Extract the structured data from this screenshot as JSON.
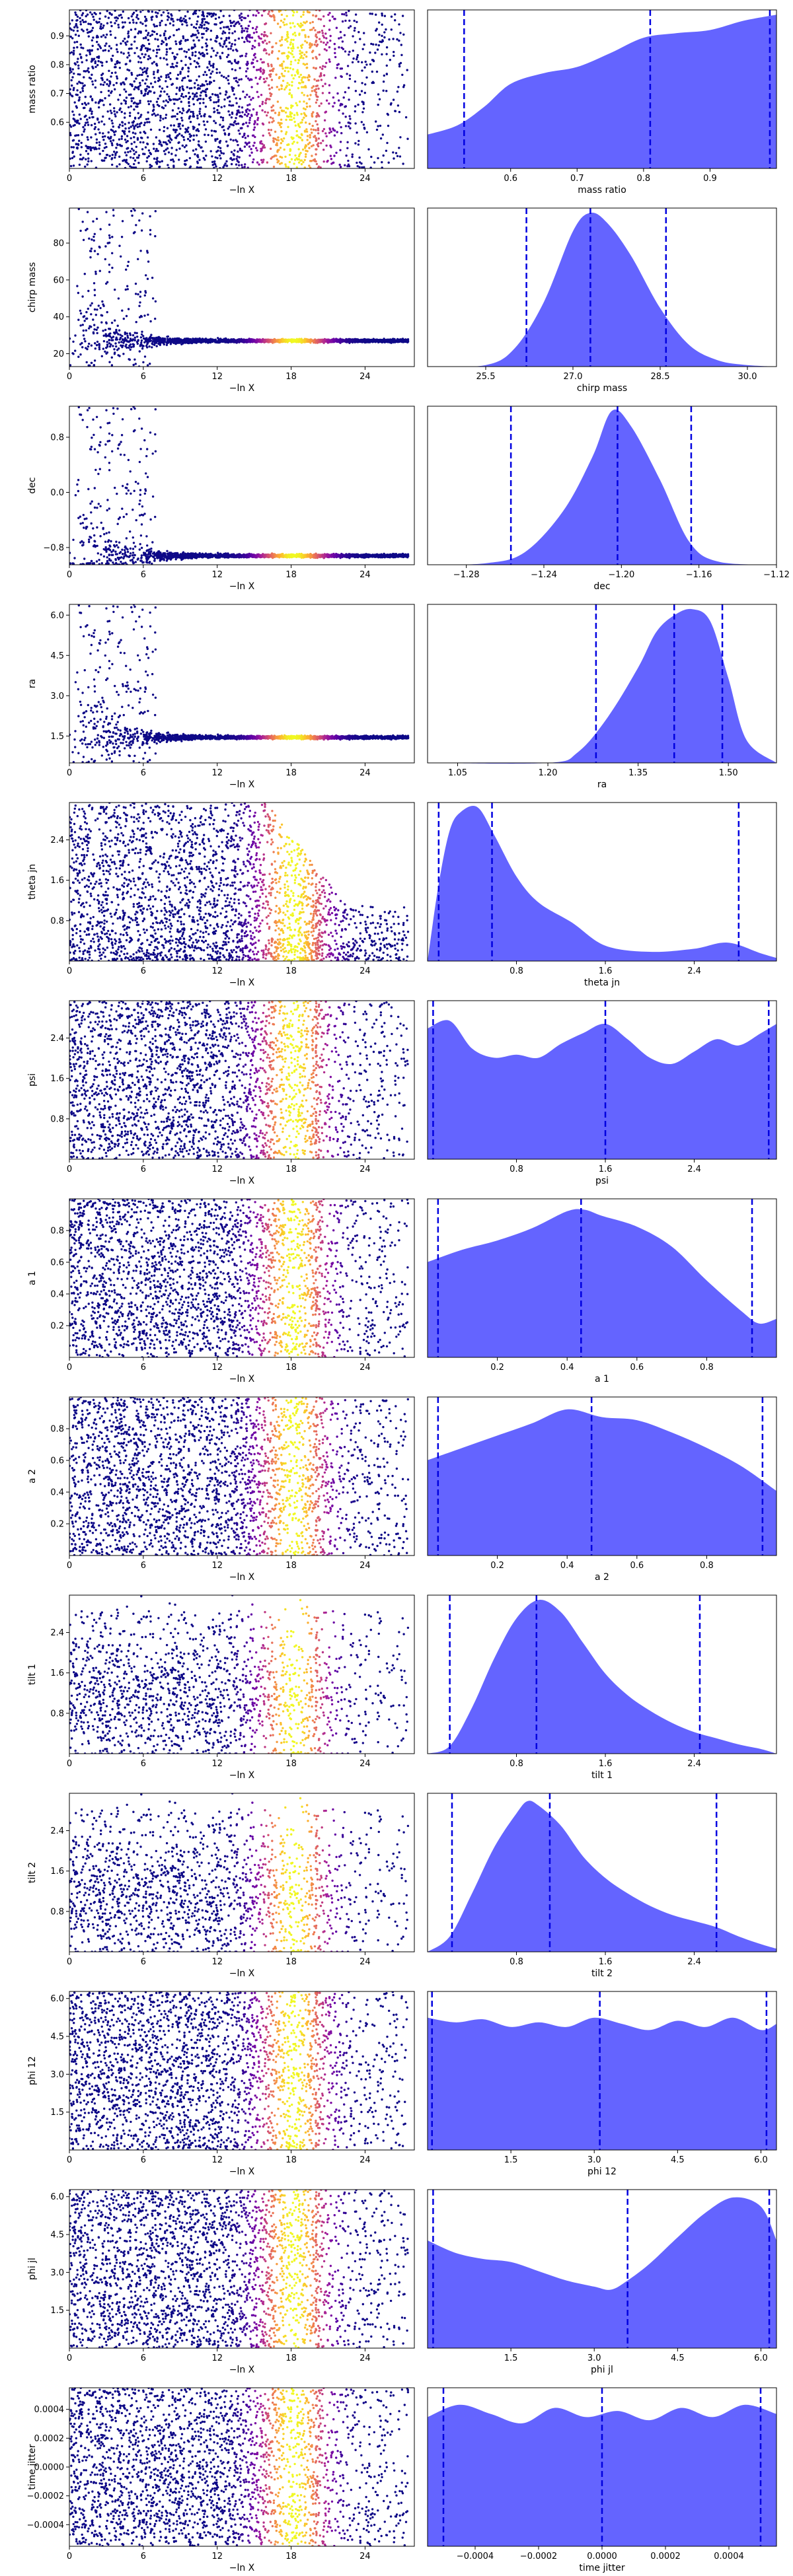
{
  "figure": {
    "xlabel_left": "−ln X",
    "fill_color": "#6464ff",
    "line_color": "#0000e0",
    "colormap": [
      "#0d0887",
      "#5c01a6",
      "#9c179e",
      "#cc4778",
      "#ed7953",
      "#fdb42f",
      "#f0f921"
    ]
  },
  "chart_data": [
    {
      "type": "scatter+density",
      "param": "mass ratio",
      "ylim": [
        0.44,
        0.99
      ],
      "yticks": [
        "0.6",
        "0.7",
        "0.8",
        "0.9"
      ],
      "xlim": [
        0.475,
        1.0
      ],
      "xticks": [
        "0.6",
        "0.7",
        "0.8",
        "0.9"
      ],
      "density_x": [
        0.475,
        0.52,
        0.56,
        0.6,
        0.65,
        0.7,
        0.75,
        0.8,
        0.85,
        0.9,
        0.95,
        1.0
      ],
      "density_y": [
        0.22,
        0.28,
        0.4,
        0.55,
        0.62,
        0.66,
        0.75,
        0.85,
        0.88,
        0.9,
        0.96,
        1.0
      ],
      "quantiles": [
        0.53,
        0.81,
        0.99
      ],
      "scatter": {
        "mode": "band",
        "pattern": "uniform"
      }
    },
    {
      "type": "scatter+density",
      "param": "chirp mass",
      "ylim": [
        13,
        99
      ],
      "yticks": [
        "20",
        "40",
        "60",
        "80"
      ],
      "xlim": [
        24.5,
        30.5
      ],
      "xticks": [
        "25.5",
        "27.0",
        "28.5",
        "30.0"
      ],
      "density_x": [
        24.5,
        25.5,
        26.0,
        26.5,
        27.0,
        27.3,
        27.6,
        28.0,
        28.5,
        29.0,
        29.5,
        30.0,
        30.5
      ],
      "density_y": [
        0.0,
        0.01,
        0.12,
        0.42,
        0.88,
        1.0,
        0.93,
        0.72,
        0.38,
        0.14,
        0.04,
        0.01,
        0.0
      ],
      "quantiles": [
        26.2,
        27.3,
        28.6
      ],
      "scatter": {
        "mode": "funnel",
        "center": 27,
        "spread": 60,
        "floor": 13
      }
    },
    {
      "type": "scatter+density",
      "param": "dec",
      "ylim": [
        -1.05,
        1.25
      ],
      "yticks": [
        "−0.8",
        "0.0",
        "0.8"
      ],
      "xlim": [
        -1.3,
        -1.12
      ],
      "xticks": [
        "−1.28",
        "−1.24",
        "−1.20",
        "−1.16",
        "−1.12"
      ],
      "density_x": [
        -1.3,
        -1.27,
        -1.25,
        -1.23,
        -1.215,
        -1.205,
        -1.195,
        -1.18,
        -1.165,
        -1.15,
        -1.12
      ],
      "density_y": [
        0.0,
        0.01,
        0.08,
        0.35,
        0.7,
        1.0,
        0.9,
        0.55,
        0.15,
        0.02,
        0.0
      ],
      "quantiles": [
        -1.257,
        -1.202,
        -1.164
      ],
      "scatter": {
        "mode": "funnel",
        "center": -0.92,
        "spread": 2.1,
        "floor": -1.05
      }
    },
    {
      "type": "scatter+density",
      "param": "ra",
      "ylim": [
        0.5,
        6.4
      ],
      "yticks": [
        "1.5",
        "3.0",
        "4.5",
        "6.0"
      ],
      "xlim": [
        1.0,
        1.58
      ],
      "xticks": [
        "1.05",
        "1.20",
        "1.35",
        "1.50"
      ],
      "density_x": [
        1.0,
        1.2,
        1.25,
        1.3,
        1.35,
        1.38,
        1.41,
        1.44,
        1.47,
        1.5,
        1.53,
        1.58
      ],
      "density_y": [
        0.0,
        0.0,
        0.07,
        0.3,
        0.62,
        0.85,
        0.96,
        1.0,
        0.92,
        0.55,
        0.15,
        0.0
      ],
      "quantiles": [
        1.28,
        1.41,
        1.49
      ],
      "scatter": {
        "mode": "funnel",
        "center": 1.45,
        "spread": 4.9,
        "floor": 0.5
      }
    },
    {
      "type": "scatter+density",
      "param": "theta jn",
      "ylim": [
        0.0,
        3.14
      ],
      "yticks": [
        "0.8",
        "1.6",
        "2.4"
      ],
      "xlim": [
        0.0,
        3.14
      ],
      "xticks": [
        "0.8",
        "1.6",
        "2.4"
      ],
      "density_x": [
        0.0,
        0.1,
        0.2,
        0.3,
        0.45,
        0.6,
        0.8,
        1.0,
        1.3,
        1.6,
        2.0,
        2.4,
        2.7,
        3.0,
        3.14
      ],
      "density_y": [
        0.0,
        0.5,
        0.85,
        0.97,
        1.0,
        0.82,
        0.55,
        0.38,
        0.25,
        0.1,
        0.06,
        0.08,
        0.12,
        0.05,
        0.02
      ],
      "quantiles": [
        0.1,
        0.58,
        2.8
      ],
      "scatter": {
        "mode": "band",
        "pattern": "falloff"
      }
    },
    {
      "type": "scatter+density",
      "param": "psi",
      "ylim": [
        0.0,
        3.14
      ],
      "yticks": [
        "0.8",
        "1.6",
        "2.4"
      ],
      "xlim": [
        0.0,
        3.14
      ],
      "xticks": [
        "0.8",
        "1.6",
        "2.4"
      ],
      "density_x": [
        0.0,
        0.2,
        0.4,
        0.6,
        0.8,
        1.0,
        1.2,
        1.4,
        1.6,
        1.8,
        2.0,
        2.2,
        2.4,
        2.6,
        2.8,
        3.0,
        3.14
      ],
      "density_y": [
        0.85,
        0.9,
        0.72,
        0.66,
        0.68,
        0.66,
        0.75,
        0.82,
        0.88,
        0.78,
        0.66,
        0.62,
        0.7,
        0.78,
        0.74,
        0.82,
        0.88
      ],
      "quantiles": [
        0.05,
        1.6,
        3.07
      ],
      "scatter": {
        "mode": "band",
        "pattern": "uniform"
      }
    },
    {
      "type": "scatter+density",
      "param": "a 1",
      "ylim": [
        0.0,
        1.0
      ],
      "yticks": [
        "0.2",
        "0.4",
        "0.6",
        "0.8"
      ],
      "xlim": [
        0.0,
        1.0
      ],
      "xticks": [
        "0.2",
        "0.4",
        "0.6",
        "0.8"
      ],
      "density_x": [
        0.0,
        0.1,
        0.2,
        0.3,
        0.4,
        0.45,
        0.5,
        0.6,
        0.7,
        0.8,
        0.9,
        0.95,
        1.0
      ],
      "density_y": [
        0.62,
        0.7,
        0.76,
        0.84,
        0.95,
        0.96,
        0.92,
        0.85,
        0.72,
        0.5,
        0.3,
        0.22,
        0.25
      ],
      "quantiles": [
        0.03,
        0.44,
        0.93
      ],
      "scatter": {
        "mode": "band",
        "pattern": "uniform"
      }
    },
    {
      "type": "scatter+density",
      "param": "a 2",
      "ylim": [
        0.0,
        1.0
      ],
      "yticks": [
        "0.2",
        "0.4",
        "0.6",
        "0.8"
      ],
      "xlim": [
        0.0,
        1.0
      ],
      "xticks": [
        "0.2",
        "0.4",
        "0.6",
        "0.8"
      ],
      "density_x": [
        0.0,
        0.1,
        0.2,
        0.3,
        0.4,
        0.5,
        0.6,
        0.7,
        0.8,
        0.9,
        1.0
      ],
      "density_y": [
        0.62,
        0.7,
        0.78,
        0.86,
        0.95,
        0.9,
        0.88,
        0.8,
        0.7,
        0.58,
        0.42
      ],
      "quantiles": [
        0.03,
        0.47,
        0.96
      ],
      "scatter": {
        "mode": "band",
        "pattern": "uniform"
      }
    },
    {
      "type": "scatter+density",
      "param": "tilt 1",
      "ylim": [
        0.0,
        3.14
      ],
      "yticks": [
        "0.8",
        "1.6",
        "2.4"
      ],
      "xlim": [
        0.0,
        3.14
      ],
      "xticks": [
        "0.8",
        "1.6",
        "2.4"
      ],
      "density_x": [
        0.0,
        0.2,
        0.4,
        0.6,
        0.8,
        1.0,
        1.2,
        1.4,
        1.6,
        1.8,
        2.0,
        2.2,
        2.4,
        2.6,
        2.8,
        3.0,
        3.14
      ],
      "density_y": [
        0.0,
        0.05,
        0.3,
        0.62,
        0.88,
        1.0,
        0.92,
        0.72,
        0.52,
        0.38,
        0.28,
        0.2,
        0.14,
        0.1,
        0.06,
        0.03,
        0.0
      ],
      "quantiles": [
        0.2,
        0.98,
        2.45
      ],
      "scatter": {
        "mode": "band",
        "pattern": "midweighted"
      }
    },
    {
      "type": "scatter+density",
      "param": "tilt 2",
      "ylim": [
        0.0,
        3.14
      ],
      "yticks": [
        "0.8",
        "1.6",
        "2.4"
      ],
      "xlim": [
        0.0,
        3.14
      ],
      "xticks": [
        "0.8",
        "1.6",
        "2.4"
      ],
      "density_x": [
        0.0,
        0.2,
        0.4,
        0.6,
        0.8,
        0.9,
        1.0,
        1.2,
        1.4,
        1.6,
        1.8,
        2.0,
        2.2,
        2.4,
        2.6,
        2.8,
        3.0,
        3.14
      ],
      "density_y": [
        0.0,
        0.1,
        0.38,
        0.68,
        0.9,
        0.98,
        0.95,
        0.82,
        0.62,
        0.48,
        0.38,
        0.3,
        0.24,
        0.2,
        0.16,
        0.1,
        0.05,
        0.02
      ],
      "quantiles": [
        0.22,
        1.1,
        2.6
      ],
      "scatter": {
        "mode": "band",
        "pattern": "midweighted"
      }
    },
    {
      "type": "scatter+density",
      "param": "phi 12",
      "ylim": [
        0.0,
        6.28
      ],
      "yticks": [
        "1.5",
        "3.0",
        "4.5",
        "6.0"
      ],
      "xlim": [
        0.0,
        6.28
      ],
      "xticks": [
        "1.5",
        "3.0",
        "4.5",
        "6.0"
      ],
      "density_x": [
        0.0,
        0.5,
        1.0,
        1.5,
        2.0,
        2.5,
        3.0,
        3.5,
        4.0,
        4.5,
        5.0,
        5.5,
        6.0,
        6.28
      ],
      "density_y": [
        0.86,
        0.83,
        0.85,
        0.8,
        0.83,
        0.8,
        0.86,
        0.82,
        0.78,
        0.84,
        0.8,
        0.86,
        0.78,
        0.82
      ],
      "quantiles": [
        0.08,
        3.1,
        6.1
      ],
      "scatter": {
        "mode": "band",
        "pattern": "uniform"
      }
    },
    {
      "type": "scatter+density",
      "param": "phi jl",
      "ylim": [
        0.0,
        6.28
      ],
      "yticks": [
        "1.5",
        "3.0",
        "4.5",
        "6.0"
      ],
      "xlim": [
        0.0,
        6.28
      ],
      "xticks": [
        "1.5",
        "3.0",
        "4.5",
        "6.0"
      ],
      "density_x": [
        0.0,
        0.5,
        1.0,
        1.5,
        2.0,
        2.5,
        3.0,
        3.3,
        3.6,
        4.0,
        4.5,
        5.0,
        5.5,
        6.0,
        6.28
      ],
      "density_y": [
        0.7,
        0.62,
        0.58,
        0.56,
        0.5,
        0.44,
        0.4,
        0.38,
        0.44,
        0.55,
        0.72,
        0.88,
        0.98,
        0.92,
        0.7
      ],
      "quantiles": [
        0.1,
        3.6,
        6.15
      ],
      "scatter": {
        "mode": "band",
        "pattern": "uniform"
      }
    },
    {
      "type": "scatter+density",
      "param": "time jitter",
      "ylim": [
        -0.00055,
        0.00055
      ],
      "yticks": [
        "−0.0004",
        "−0.0002",
        "0.0000",
        "0.0002",
        "0.0004"
      ],
      "xlim": [
        -0.00055,
        0.00055
      ],
      "xticks": [
        "−0.0004",
        "−0.0002",
        "0.0000",
        "0.0002",
        "0.0004"
      ],
      "density_x": [
        -0.00055,
        -0.00045,
        -0.00035,
        -0.00025,
        -0.00015,
        -5e-05,
        5e-05,
        0.00015,
        0.00025,
        0.00035,
        0.00045,
        0.00055
      ],
      "density_y": [
        0.84,
        0.92,
        0.86,
        0.8,
        0.9,
        0.84,
        0.88,
        0.82,
        0.9,
        0.84,
        0.92,
        0.86
      ],
      "quantiles": [
        -0.0005,
        0.0,
        0.0005
      ],
      "scatter": {
        "mode": "band",
        "pattern": "uniform"
      }
    }
  ]
}
